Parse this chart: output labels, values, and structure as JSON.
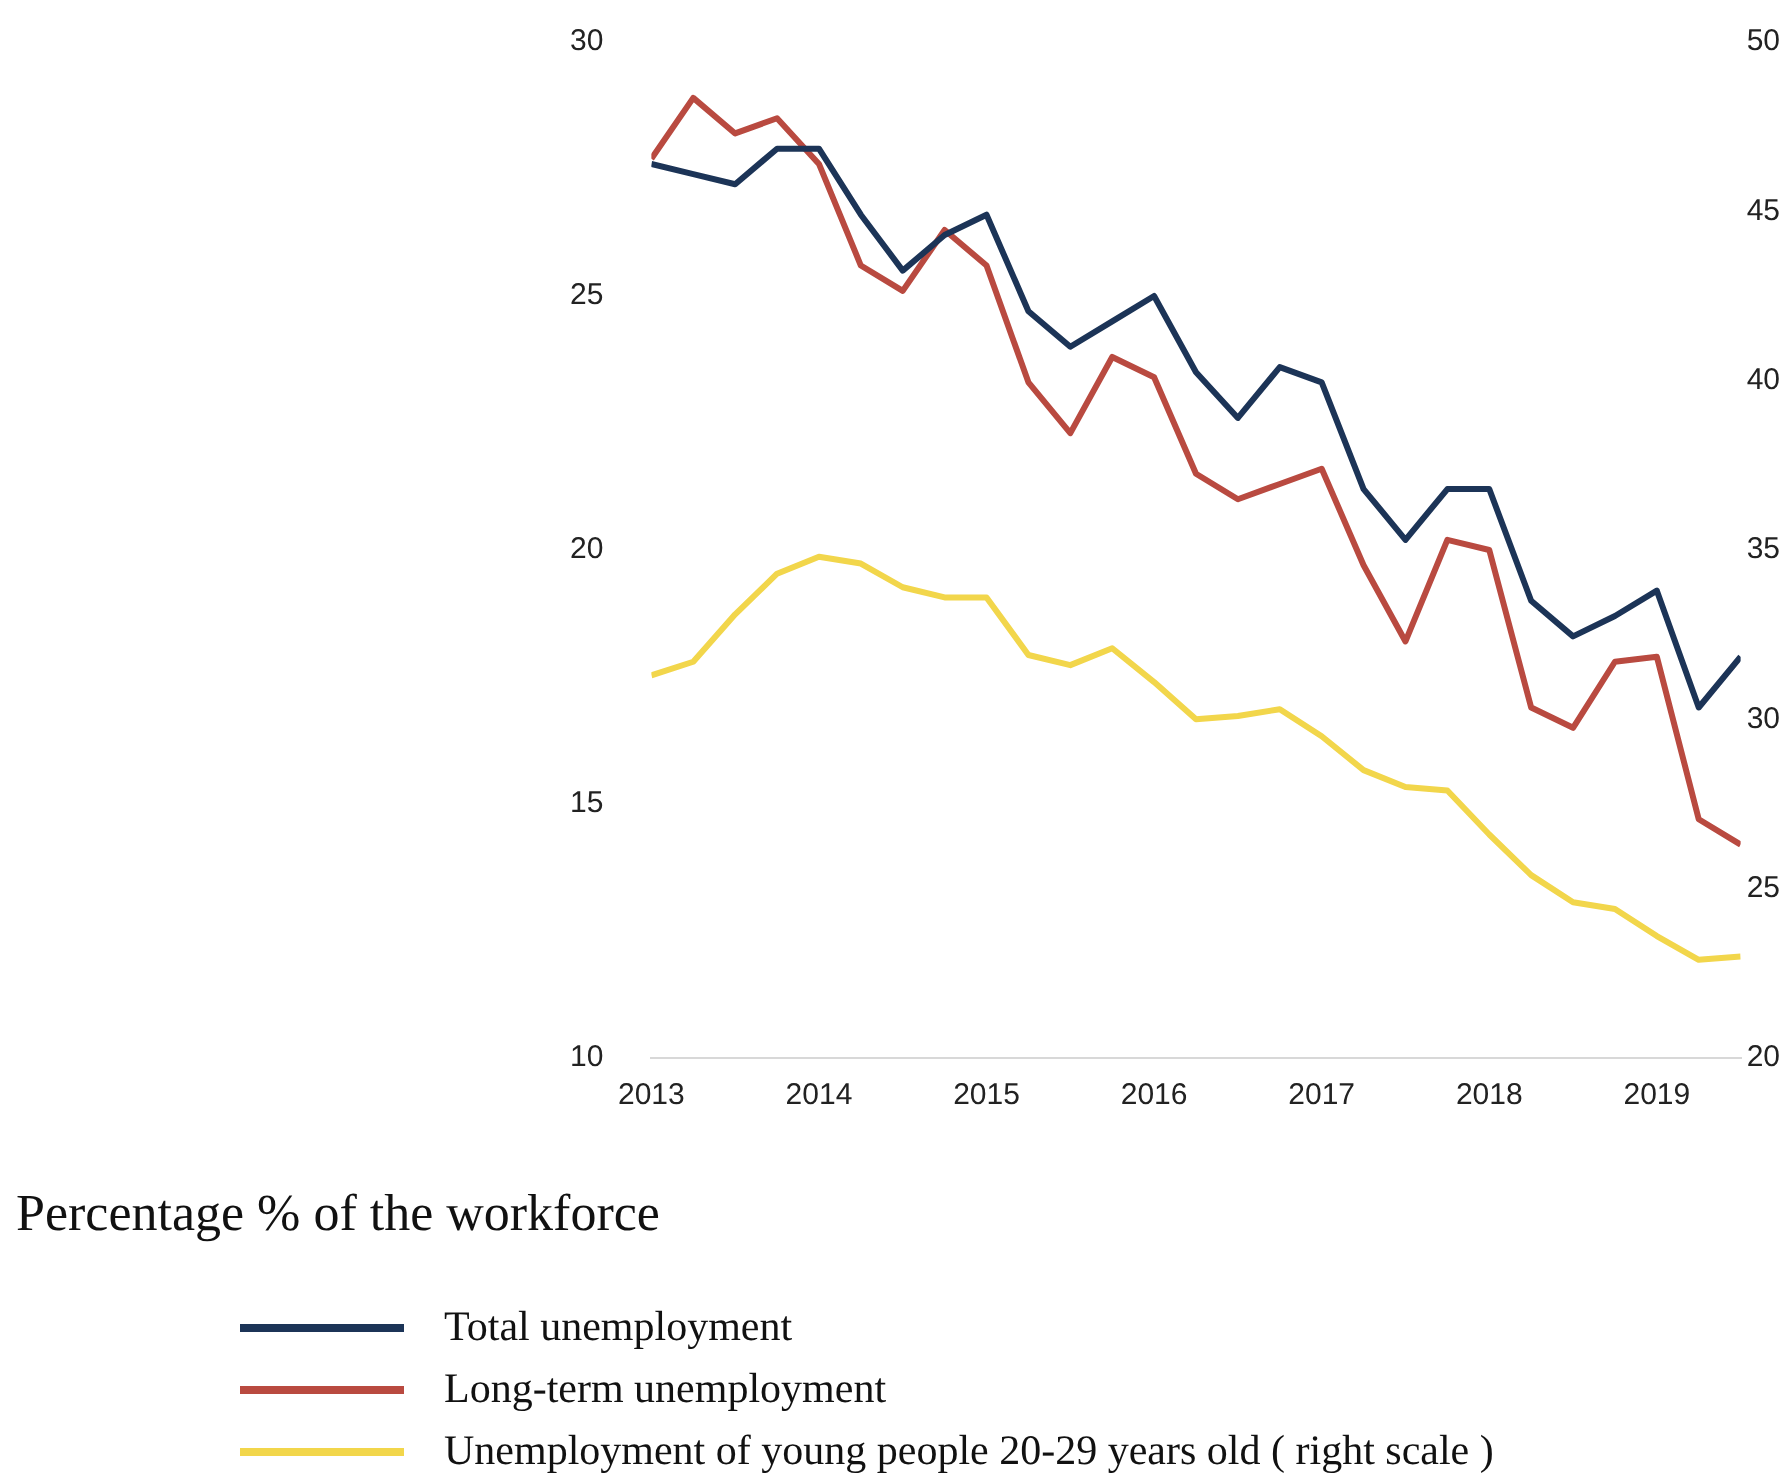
{
  "chart_data": {
    "type": "line",
    "x": [
      2013,
      2013.25,
      2013.5,
      2013.75,
      2014,
      2014.25,
      2014.5,
      2014.75,
      2015,
      2015.25,
      2015.5,
      2015.75,
      2016,
      2016.25,
      2016.5,
      2016.75,
      2017,
      2017.25,
      2017.5,
      2017.75,
      2018,
      2018.25,
      2018.5,
      2018.75,
      2019,
      2019.25,
      2019.5
    ],
    "xlim": [
      2013,
      2019.5
    ],
    "xticks": [
      2013,
      2014,
      2015,
      2016,
      2017,
      2018,
      2019
    ],
    "ylim": [
      10,
      30
    ],
    "yticks": [
      10,
      15,
      20,
      25,
      30
    ],
    "y2lim": [
      20,
      50
    ],
    "y2ticks": [
      20,
      25,
      30,
      35,
      40,
      45,
      50
    ],
    "series": [
      {
        "name": "Total unemployment",
        "color": "#1c3457",
        "values": [
          27.6,
          27.4,
          27.2,
          27.9,
          27.9,
          26.6,
          25.5,
          26.2,
          26.6,
          24.7,
          24.0,
          24.5,
          25.0,
          23.5,
          22.6,
          23.6,
          23.3,
          21.2,
          20.2,
          21.2,
          21.2,
          19.0,
          18.3,
          18.7,
          19.2,
          16.9,
          17.9
        ]
      },
      {
        "name": "Long-term unemployment",
        "color": "#b94a40",
        "values": [
          27.7,
          28.9,
          28.2,
          28.5,
          27.6,
          25.6,
          25.1,
          26.3,
          25.6,
          23.3,
          22.3,
          23.8,
          23.4,
          21.5,
          21.0,
          21.3,
          21.6,
          19.7,
          18.2,
          20.2,
          20.0,
          16.9,
          16.5,
          17.8,
          17.9,
          14.7,
          14.2
        ]
      },
      {
        "name": "Unemployment of young people 20-29 years old  ( right scale )",
        "color": "#f2d64b",
        "axis": "y2",
        "values": [
          31.3,
          31.7,
          33.1,
          34.3,
          34.8,
          34.6,
          33.9,
          33.6,
          33.6,
          31.9,
          31.6,
          32.1,
          31.1,
          30.0,
          30.1,
          30.3,
          29.5,
          28.5,
          28.0,
          27.9,
          26.6,
          25.4,
          24.6,
          24.4,
          23.6,
          22.9,
          23.0
        ]
      }
    ],
    "annotations": [
      "Percentage % of the workforce"
    ],
    "legend": "bottom",
    "grid": false
  }
}
